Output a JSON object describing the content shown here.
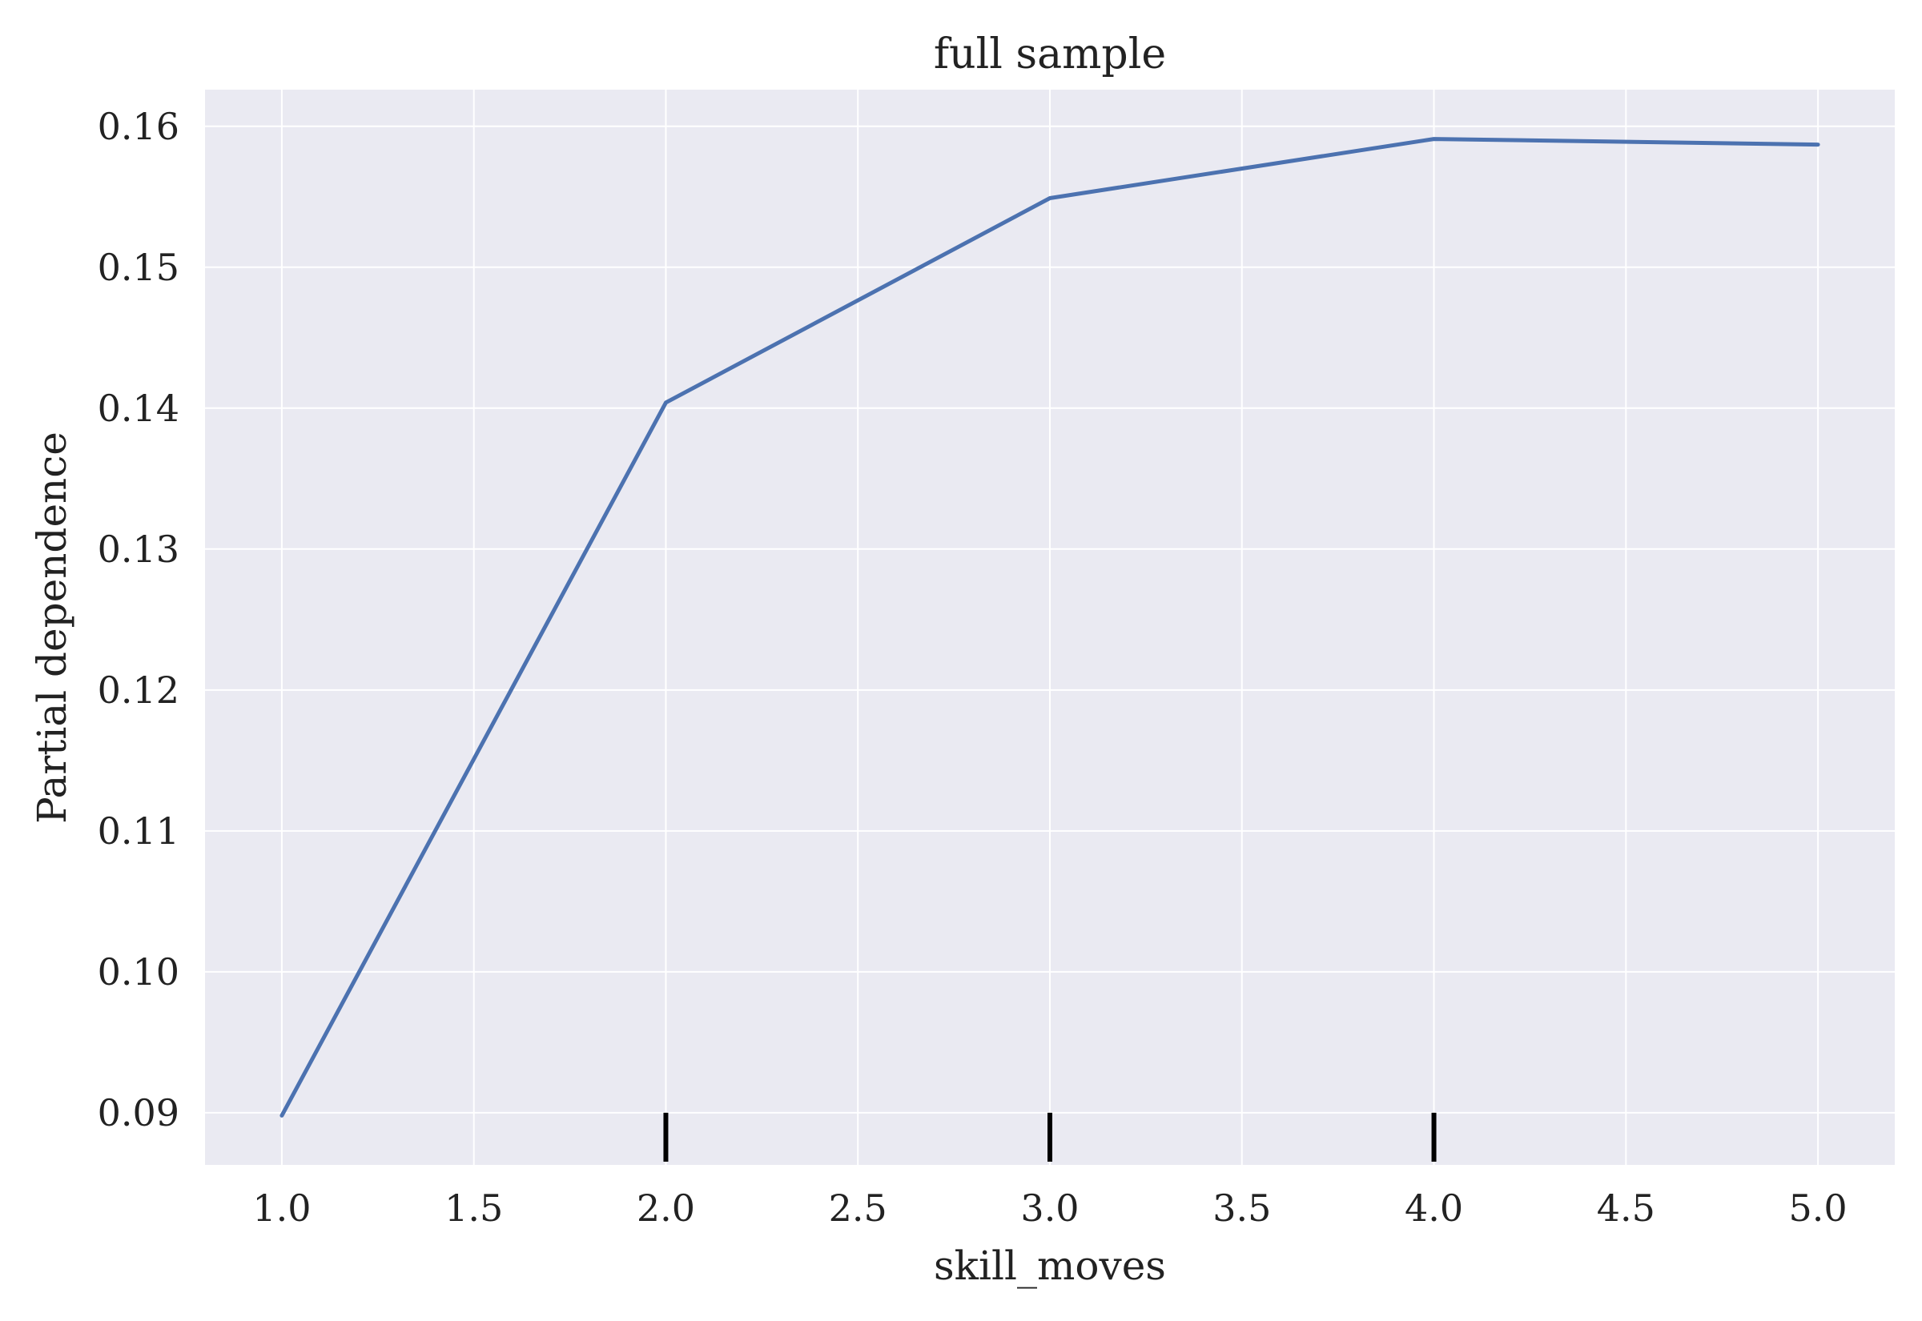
{
  "chart_data": {
    "type": "line",
    "title": "full sample",
    "xlabel": "skill_moves",
    "ylabel": "Partial dependence",
    "xlim": [
      0.8,
      5.2
    ],
    "ylim": [
      0.0863,
      0.1626
    ],
    "xticks": [
      1.0,
      1.5,
      2.0,
      2.5,
      3.0,
      3.5,
      4.0,
      4.5,
      5.0
    ],
    "xtick_labels": [
      "1.0",
      "1.5",
      "2.0",
      "2.5",
      "3.0",
      "3.5",
      "4.0",
      "4.5",
      "5.0"
    ],
    "yticks": [
      0.09,
      0.1,
      0.11,
      0.12,
      0.13,
      0.14,
      0.15,
      0.16
    ],
    "ytick_labels": [
      "0.09",
      "0.10",
      "0.11",
      "0.12",
      "0.13",
      "0.14",
      "0.15",
      "0.16"
    ],
    "grid": true,
    "series": [
      {
        "x": [
          1.0,
          2.0,
          3.0,
          4.0,
          5.0
        ],
        "y": [
          0.0898,
          0.1404,
          0.1549,
          0.1591,
          0.1587
        ]
      }
    ],
    "rug_x": [
      2.0,
      3.0,
      4.0
    ],
    "colors": {
      "background": "#EAEAF2",
      "grid": "#FFFFFF",
      "line": "#4C72B0",
      "rug": "#000000"
    }
  }
}
